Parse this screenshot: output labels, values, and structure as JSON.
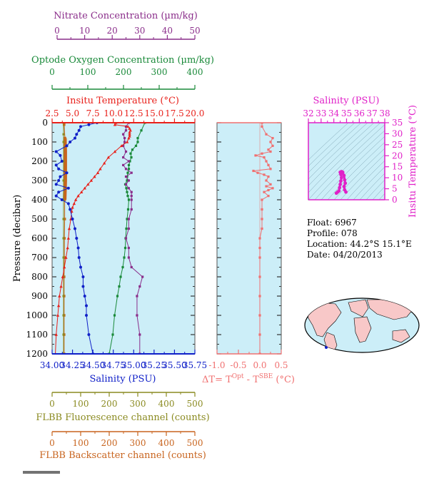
{
  "colors": {
    "nitrate": "#8a2d8a",
    "oxygen": "#1a8a3a",
    "temperature": "#e8201a",
    "salinity": "#1020c8",
    "fluorescence": "#8a8a20",
    "backscatter": "#c8641e",
    "dt": "#f07070",
    "ts": "#e020c8",
    "panel_bg": "#cceef8"
  },
  "axes": {
    "nitrate": {
      "title": "Nitrate Concentration (µm/kg)",
      "ticks": [
        "0",
        "10",
        "20",
        "30",
        "40",
        "50"
      ],
      "range": [
        0,
        50
      ]
    },
    "oxygen": {
      "title": "Optode Oxygen Concentration (µm/kg)",
      "ticks": [
        "0",
        "100",
        "200",
        "300",
        "400"
      ],
      "range": [
        0,
        400
      ]
    },
    "temperature": {
      "title": "Insitu Temperature (°C)",
      "ticks": [
        "2.5",
        "5.0",
        "7.5",
        "10.0",
        "12.5",
        "15.0",
        "17.5",
        "20.0"
      ],
      "range": [
        2.5,
        20.0
      ]
    },
    "salinity": {
      "title": "Salinity (PSU)",
      "ticks": [
        "34.00",
        "34.25",
        "34.50",
        "34.75",
        "35.00",
        "35.25",
        "35.50",
        "35.75"
      ],
      "range": [
        34.0,
        35.75
      ]
    },
    "pressure": {
      "title": "Pressure (decibar)",
      "ticks": [
        "0",
        "100",
        "200",
        "300",
        "400",
        "500",
        "600",
        "700",
        "800",
        "900",
        "1000",
        "1100",
        "1200"
      ],
      "range": [
        0,
        1200
      ]
    },
    "fluorescence": {
      "title": "FLBB Fluorescence channel (counts)",
      "ticks": [
        "0",
        "100",
        "200",
        "300",
        "400",
        "500"
      ],
      "range": [
        0,
        500
      ]
    },
    "backscatter": {
      "title": "FLBB Backscatter channel (counts)",
      "ticks": [
        "0",
        "100",
        "200",
        "300",
        "400",
        "500"
      ],
      "range": [
        0,
        500
      ]
    },
    "dt": {
      "title_main": "ΔT= T",
      "title_sup1": "Opt",
      "title_mid": " - T",
      "title_sup2": "SBE",
      "title_end": " (°C)",
      "ticks": [
        "-1.0",
        "-0.5",
        "0.0",
        "0.5"
      ],
      "range": [
        -1.0,
        0.5
      ]
    },
    "ts_salinity": {
      "title": "Salinity (PSU)",
      "ticks": [
        "32",
        "33",
        "34",
        "35",
        "36",
        "37",
        "38"
      ],
      "range": [
        32,
        38
      ]
    },
    "ts_temperature": {
      "title": "Insitu Temperature (°C)",
      "ticks": [
        "0",
        "5",
        "10",
        "15",
        "20",
        "25",
        "30",
        "35"
      ],
      "range": [
        0,
        35
      ]
    }
  },
  "info": {
    "float": "Float:  6967",
    "profile": "Profile:  078",
    "location": "Location:  44.2°S  15.1°E",
    "date": "Date:  04/20/2013"
  },
  "chart_data": {
    "type": "line",
    "series": [
      {
        "name": "Insitu Temperature",
        "unit": "°C",
        "points": [
          [
            0,
            10.3
          ],
          [
            10,
            10.2
          ],
          [
            20,
            11.8
          ],
          [
            30,
            12.0
          ],
          [
            40,
            12.1
          ],
          [
            50,
            12.0
          ],
          [
            60,
            12.0
          ],
          [
            70,
            12.0
          ],
          [
            80,
            11.9
          ],
          [
            100,
            11.7
          ],
          [
            120,
            11.0
          ],
          [
            150,
            10.2
          ],
          [
            180,
            9.4
          ],
          [
            210,
            8.9
          ],
          [
            240,
            8.4
          ],
          [
            260,
            8.1
          ],
          [
            280,
            7.7
          ],
          [
            300,
            7.3
          ],
          [
            320,
            6.9
          ],
          [
            340,
            6.5
          ],
          [
            360,
            6.1
          ],
          [
            380,
            5.7
          ],
          [
            400,
            5.4
          ],
          [
            420,
            5.2
          ],
          [
            440,
            5.0
          ],
          [
            460,
            4.9
          ],
          [
            500,
            4.8
          ],
          [
            550,
            4.6
          ],
          [
            600,
            4.5
          ],
          [
            650,
            4.4
          ],
          [
            700,
            4.2
          ],
          [
            750,
            4.0
          ],
          [
            800,
            3.8
          ],
          [
            850,
            3.6
          ],
          [
            900,
            3.4
          ],
          [
            950,
            3.3
          ],
          [
            1000,
            3.2
          ],
          [
            1100,
            3.0
          ],
          [
            1200,
            2.9
          ]
        ]
      },
      {
        "name": "Salinity",
        "unit": "PSU",
        "points": [
          [
            0,
            34.55
          ],
          [
            10,
            34.45
          ],
          [
            20,
            34.35
          ],
          [
            40,
            34.33
          ],
          [
            60,
            34.3
          ],
          [
            80,
            34.28
          ],
          [
            100,
            34.22
          ],
          [
            120,
            34.18
          ],
          [
            150,
            34.05
          ],
          [
            170,
            34.1
          ],
          [
            200,
            34.12
          ],
          [
            220,
            34.05
          ],
          [
            240,
            34.08
          ],
          [
            260,
            34.18
          ],
          [
            280,
            34.1
          ],
          [
            300,
            34.08
          ],
          [
            320,
            34.05
          ],
          [
            340,
            34.2
          ],
          [
            360,
            34.08
          ],
          [
            380,
            34.05
          ],
          [
            400,
            34.12
          ],
          [
            420,
            34.2
          ],
          [
            450,
            34.22
          ],
          [
            500,
            34.25
          ],
          [
            550,
            34.28
          ],
          [
            600,
            34.3
          ],
          [
            650,
            34.32
          ],
          [
            700,
            34.33
          ],
          [
            750,
            34.35
          ],
          [
            800,
            34.38
          ],
          [
            850,
            34.38
          ],
          [
            900,
            34.4
          ],
          [
            950,
            34.42
          ],
          [
            1000,
            34.42
          ],
          [
            1100,
            34.45
          ],
          [
            1200,
            34.5
          ]
        ]
      },
      {
        "name": "Nitrate Concentration",
        "unit": "µm/kg",
        "points": [
          [
            0,
            26
          ],
          [
            20,
            25
          ],
          [
            40,
            25
          ],
          [
            60,
            24
          ],
          [
            80,
            24.5
          ],
          [
            100,
            24.5
          ],
          [
            120,
            24
          ],
          [
            150,
            25
          ],
          [
            180,
            24
          ],
          [
            200,
            26
          ],
          [
            220,
            24
          ],
          [
            240,
            25
          ],
          [
            260,
            27
          ],
          [
            280,
            25
          ],
          [
            300,
            26
          ],
          [
            320,
            25
          ],
          [
            340,
            26
          ],
          [
            360,
            27
          ],
          [
            380,
            27
          ],
          [
            400,
            27
          ],
          [
            450,
            27
          ],
          [
            500,
            26
          ],
          [
            550,
            26
          ],
          [
            600,
            25
          ],
          [
            650,
            26
          ],
          [
            700,
            26
          ],
          [
            750,
            27
          ],
          [
            800,
            31
          ],
          [
            850,
            30
          ],
          [
            900,
            29
          ],
          [
            1000,
            29
          ],
          [
            1100,
            30
          ],
          [
            1200,
            30
          ]
        ]
      },
      {
        "name": "Optode Oxygen Concentration",
        "unit": "µm/kg",
        "points": [
          [
            0,
            260
          ],
          [
            40,
            250
          ],
          [
            80,
            240
          ],
          [
            100,
            240
          ],
          [
            120,
            235
          ],
          [
            140,
            225
          ],
          [
            160,
            220
          ],
          [
            180,
            222
          ],
          [
            200,
            218
          ],
          [
            220,
            215
          ],
          [
            240,
            215
          ],
          [
            260,
            212
          ],
          [
            280,
            210
          ],
          [
            300,
            210
          ],
          [
            320,
            205
          ],
          [
            340,
            208
          ],
          [
            360,
            210
          ],
          [
            380,
            212
          ],
          [
            400,
            215
          ],
          [
            450,
            213
          ],
          [
            500,
            210
          ],
          [
            550,
            208
          ],
          [
            600,
            206
          ],
          [
            650,
            205
          ],
          [
            700,
            202
          ],
          [
            750,
            198
          ],
          [
            800,
            192
          ],
          [
            850,
            188
          ],
          [
            900,
            183
          ],
          [
            1000,
            175
          ],
          [
            1100,
            170
          ],
          [
            1200,
            160
          ]
        ]
      },
      {
        "name": "FLBB Fluorescence",
        "unit": "counts",
        "points": [
          [
            0,
            40
          ],
          [
            60,
            40
          ],
          [
            100,
            40
          ],
          [
            200,
            40
          ],
          [
            300,
            40
          ],
          [
            400,
            40
          ],
          [
            500,
            40
          ],
          [
            600,
            40
          ],
          [
            700,
            40
          ],
          [
            800,
            40
          ],
          [
            900,
            40
          ],
          [
            1000,
            40
          ],
          [
            1100,
            40
          ],
          [
            1200,
            40
          ]
        ]
      },
      {
        "name": "FLBB Backscatter",
        "unit": "counts",
        "points": [
          [
            0,
            42
          ],
          [
            10,
            42
          ],
          [
            80,
            45
          ],
          [
            100,
            45
          ],
          [
            150,
            46
          ],
          [
            200,
            46
          ],
          [
            250,
            46
          ],
          [
            300,
            46
          ],
          [
            350,
            45
          ],
          [
            400,
            44
          ],
          [
            500,
            44
          ],
          [
            600,
            43
          ],
          [
            700,
            43
          ],
          [
            800,
            42
          ],
          [
            900,
            42
          ],
          [
            1000,
            42
          ],
          [
            1100,
            42
          ],
          [
            1200,
            42
          ]
        ]
      },
      {
        "name": "dT",
        "unit": "°C",
        "points": [
          [
            0,
            0.05
          ],
          [
            20,
            0.05
          ],
          [
            60,
            0.15
          ],
          [
            80,
            0.3
          ],
          [
            100,
            0.25
          ],
          [
            120,
            0.3
          ],
          [
            140,
            0.2
          ],
          [
            150,
            0.25
          ],
          [
            160,
            0.05
          ],
          [
            170,
            -0.1
          ],
          [
            180,
            0.1
          ],
          [
            200,
            0.15
          ],
          [
            220,
            0.2
          ],
          [
            240,
            0.25
          ],
          [
            250,
            -0.15
          ],
          [
            260,
            -0.05
          ],
          [
            270,
            0.1
          ],
          [
            280,
            0.2
          ],
          [
            300,
            0.15
          ],
          [
            320,
            0.25
          ],
          [
            330,
            0.15
          ],
          [
            340,
            0.3
          ],
          [
            350,
            0.2
          ],
          [
            360,
            0.1
          ],
          [
            380,
            0.2
          ],
          [
            400,
            0.05
          ],
          [
            450,
            0.05
          ],
          [
            500,
            0.05
          ],
          [
            550,
            0.05
          ],
          [
            600,
            0.0
          ],
          [
            650,
            0.0
          ],
          [
            700,
            0.0
          ],
          [
            800,
            0.0
          ],
          [
            900,
            0.0
          ],
          [
            1000,
            0.0
          ],
          [
            1100,
            0.0
          ],
          [
            1200,
            0.0
          ]
        ]
      },
      {
        "name": "TS",
        "unit": "PSU/°C",
        "points": [
          [
            34.2,
            3.0
          ],
          [
            34.3,
            3.5
          ],
          [
            34.4,
            4.0
          ],
          [
            34.45,
            5.5
          ],
          [
            34.5,
            7.0
          ],
          [
            34.55,
            8.5
          ],
          [
            34.6,
            10.0
          ],
          [
            34.55,
            11.5
          ],
          [
            34.5,
            12.5
          ],
          [
            34.6,
            12.8
          ],
          [
            34.7,
            12.5
          ],
          [
            34.8,
            11.0
          ],
          [
            34.85,
            9.0
          ],
          [
            34.9,
            7.5
          ],
          [
            34.8,
            6.0
          ],
          [
            34.85,
            4.5
          ],
          [
            34.95,
            3.5
          ]
        ]
      }
    ]
  }
}
